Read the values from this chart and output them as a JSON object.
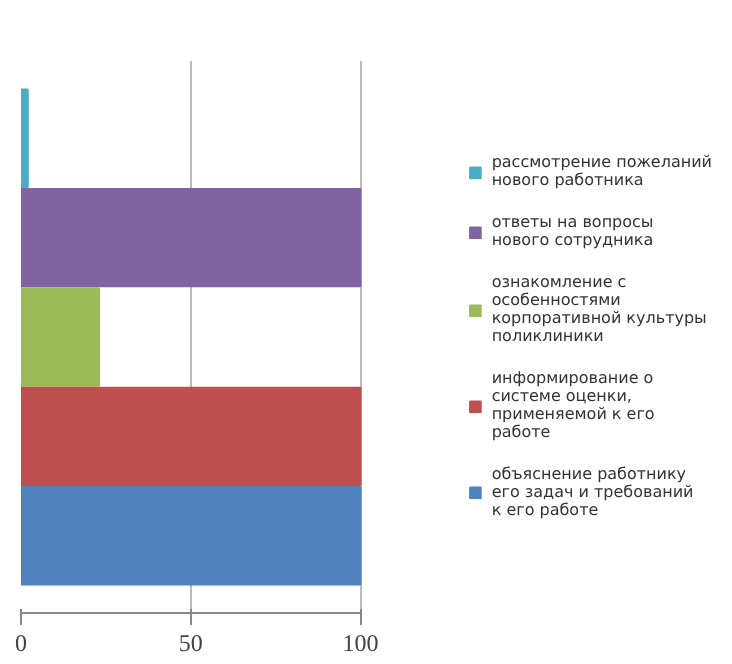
{
  "chart_data": {
    "type": "bar",
    "orientation": "horizontal",
    "categories": [
      null
    ],
    "series": [
      {
        "name": "рассмотрение пожеланий нового работника",
        "color": "#4bacc6",
        "values": [
          2
        ]
      },
      {
        "name": "ответы на вопросы нового сотрудника",
        "color": "#8064a2",
        "values": [
          100
        ]
      },
      {
        "name": "ознакомление с особенностями корпоративной культуры поликлиники",
        "color": "#9bbb59",
        "values": [
          23
        ]
      },
      {
        "name": "информирование о системе оценки, применяемой к его работе",
        "color": "#c0504d",
        "values": [
          100
        ]
      },
      {
        "name": "объяснение работнику его задач и требований к его работе",
        "color": "#4f81bd",
        "values": [
          100
        ]
      }
    ],
    "xlim": [
      0,
      100
    ],
    "xticks": [
      0,
      50,
      100
    ],
    "grid": "x",
    "legend": "right",
    "tick_labels": "x"
  }
}
